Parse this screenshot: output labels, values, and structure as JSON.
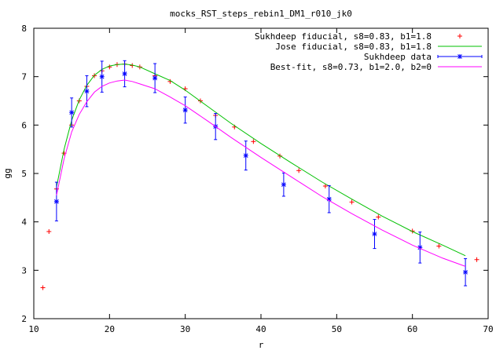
{
  "chart_data": {
    "type": "line",
    "title": "mocks_RST_steps_rebin1_DM1_r010_jk0",
    "xlabel": "r",
    "ylabel": "gg",
    "xlim": [
      10,
      70
    ],
    "ylim": [
      2,
      8
    ],
    "xticks": [
      10,
      20,
      30,
      40,
      50,
      60,
      70
    ],
    "yticks": [
      2,
      3,
      4,
      5,
      6,
      7,
      8
    ],
    "grid": false,
    "legend_position": "top-right",
    "series": [
      {
        "name": "Sukhdeep fiducial, s8=0.83, b1=1.8",
        "kind": "points",
        "marker": "plus",
        "color": "#ff0000",
        "x": [
          11.2,
          12.0,
          13.0,
          14.0,
          15.0,
          16.0,
          17.0,
          18.0,
          19.0,
          20.0,
          21.0,
          22.0,
          23.0,
          24.0,
          26.0,
          28.0,
          30.0,
          32.0,
          34.0,
          36.5,
          39.0,
          42.5,
          45.0,
          48.5,
          52.0,
          55.5,
          60.0,
          63.5,
          68.5
        ],
        "y": [
          2.64,
          3.8,
          4.68,
          5.42,
          6.0,
          6.5,
          6.8,
          7.02,
          7.12,
          7.2,
          7.25,
          7.26,
          7.23,
          7.2,
          7.02,
          6.9,
          6.75,
          6.5,
          6.2,
          5.96,
          5.66,
          5.36,
          5.06,
          4.74,
          4.41,
          4.1,
          3.81,
          3.5,
          3.22
        ]
      },
      {
        "name": "Jose fiducial, s8=0.83, b1=1.8",
        "kind": "line",
        "color": "#00c000",
        "x": [
          13.0,
          14.0,
          15.0,
          16.0,
          17.0,
          18.0,
          19.0,
          20.0,
          21.0,
          22.0,
          23.0,
          24.0,
          26.0,
          28.0,
          30.0,
          33.0,
          36.0,
          40.0,
          44.0,
          48.0,
          52.0,
          56.0,
          60.0,
          64.0,
          67.0
        ],
        "y": [
          4.72,
          5.5,
          6.1,
          6.52,
          6.82,
          7.03,
          7.15,
          7.22,
          7.25,
          7.26,
          7.24,
          7.2,
          7.06,
          6.92,
          6.72,
          6.38,
          6.04,
          5.62,
          5.22,
          4.83,
          4.47,
          4.12,
          3.8,
          3.52,
          3.3
        ]
      },
      {
        "name": "Sukhdeep data",
        "kind": "errorbar",
        "marker": "star",
        "color": "#0000ff",
        "x": [
          13.0,
          15.0,
          17.0,
          19.0,
          22.0,
          26.0,
          30.0,
          34.0,
          38.0,
          43.0,
          49.0,
          55.0,
          61.0,
          67.0
        ],
        "y": [
          4.42,
          6.26,
          6.7,
          7.0,
          7.06,
          6.97,
          6.31,
          5.97,
          5.37,
          4.77,
          4.47,
          3.75,
          3.47,
          2.96
        ],
        "yerr": [
          0.4,
          0.3,
          0.32,
          0.32,
          0.27,
          0.3,
          0.27,
          0.27,
          0.3,
          0.24,
          0.28,
          0.3,
          0.32,
          0.28
        ]
      },
      {
        "name": "Best-fit, s8=0.73, b1=2.0, b2=0",
        "kind": "line",
        "color": "#ff00ff",
        "x": [
          13.0,
          14.0,
          15.0,
          16.0,
          17.0,
          18.0,
          19.0,
          20.0,
          21.0,
          22.0,
          23.0,
          24.0,
          26.0,
          28.0,
          30.0,
          33.0,
          36.0,
          40.0,
          44.0,
          48.0,
          52.0,
          56.0,
          60.0,
          64.0,
          67.0
        ],
        "y": [
          4.55,
          5.3,
          5.86,
          6.22,
          6.48,
          6.68,
          6.8,
          6.87,
          6.91,
          6.93,
          6.9,
          6.85,
          6.75,
          6.58,
          6.4,
          6.08,
          5.75,
          5.33,
          4.93,
          4.53,
          4.17,
          3.83,
          3.52,
          3.25,
          3.08
        ]
      }
    ]
  }
}
